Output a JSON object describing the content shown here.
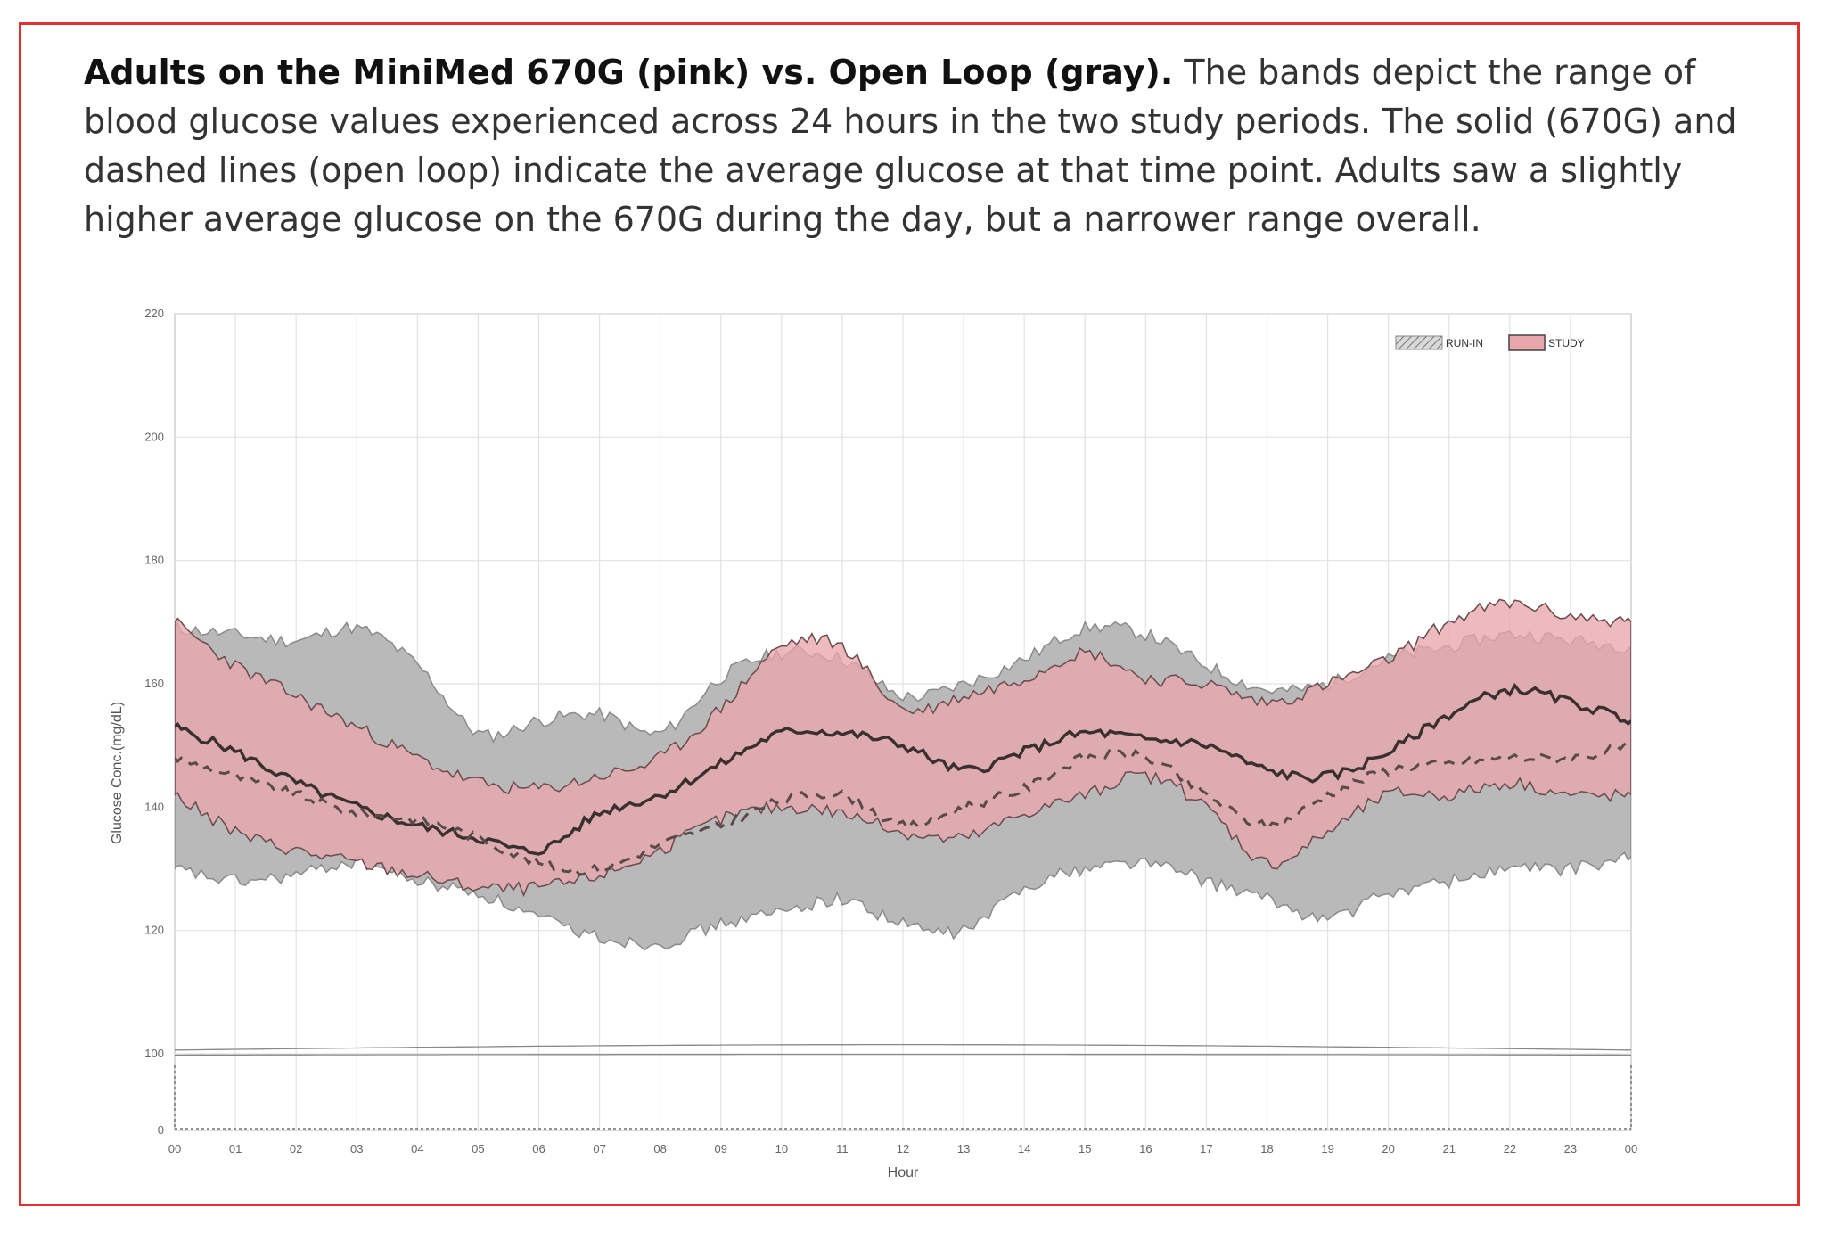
{
  "caption": {
    "bold": "Adults on the MiniMed 670G (pink) vs. Open Loop (gray).",
    "rest": " The bands depict the range of blood glucose values experienced across 24 hours in the two study periods. The solid (670G) and dashed lines (open loop) indicate the average glucose at that time point. Adults saw a slightly higher average glucose on the 670G during the day, but a narrower range overall."
  },
  "colors": {
    "frame": "#e03030",
    "study_band": "#e8a7ad",
    "runin_band": "#b5b5b5",
    "overlap_band": "#c29a9b",
    "mean_line": "#3a3030"
  },
  "chart_data": {
    "type": "area",
    "xlabel": "Hour",
    "ylabel": "Glucose Conc.(mg/dL)",
    "x_ticks": [
      "00",
      "01",
      "02",
      "03",
      "04",
      "05",
      "06",
      "07",
      "08",
      "09",
      "10",
      "11",
      "12",
      "13",
      "14",
      "15",
      "16",
      "17",
      "18",
      "19",
      "20",
      "21",
      "22",
      "23",
      "00"
    ],
    "y_ticks": [
      0,
      100,
      120,
      140,
      160,
      180,
      200,
      220
    ],
    "ylim": [
      0,
      220
    ],
    "y_axis_break": [
      0,
      100
    ],
    "grid": true,
    "legend": {
      "placement": "top-right",
      "entries": [
        {
          "name": "RUN-IN",
          "style": "gray hatched"
        },
        {
          "name": "STUDY",
          "style": "pink"
        }
      ]
    },
    "x": [
      0,
      1,
      2,
      3,
      4,
      5,
      6,
      7,
      8,
      9,
      10,
      11,
      12,
      13,
      14,
      15,
      16,
      17,
      18,
      19,
      20,
      21,
      22,
      23,
      24
    ],
    "series": [
      {
        "name": "STUDY",
        "upper": [
          170,
          163,
          158,
          153,
          148,
          144,
          143,
          145,
          148,
          156,
          166,
          166,
          156,
          158,
          161,
          165,
          161,
          160,
          157,
          160,
          164,
          170,
          173,
          171,
          170
        ],
        "lower": [
          142,
          136,
          133,
          131,
          129,
          127,
          127,
          129,
          133,
          138,
          140,
          139,
          136,
          135,
          139,
          142,
          145,
          140,
          131,
          136,
          142,
          142,
          144,
          142,
          142
        ],
        "mean": [
          153,
          149,
          144,
          140,
          137,
          135,
          133,
          139,
          142,
          147,
          152,
          152,
          150,
          146,
          149,
          152,
          151,
          150,
          146,
          145,
          149,
          155,
          159,
          157,
          154
        ]
      },
      {
        "name": "RUN-IN",
        "upper": [
          169,
          168,
          167,
          169,
          163,
          152,
          154,
          155,
          152,
          161,
          165,
          164,
          158,
          160,
          164,
          169,
          168,
          163,
          159,
          160,
          164,
          166,
          168,
          167,
          166
        ],
        "lower": [
          130,
          128,
          129,
          131,
          128,
          126,
          122,
          119,
          118,
          121,
          123,
          125,
          121,
          120,
          127,
          130,
          131,
          128,
          125,
          122,
          126,
          128,
          130,
          130,
          132
        ],
        "mean": [
          148,
          145,
          142,
          139,
          138,
          135,
          131,
          130,
          134,
          137,
          141,
          142,
          137,
          140,
          143,
          148,
          148,
          142,
          137,
          142,
          146,
          147,
          148,
          148,
          150
        ]
      }
    ]
  }
}
